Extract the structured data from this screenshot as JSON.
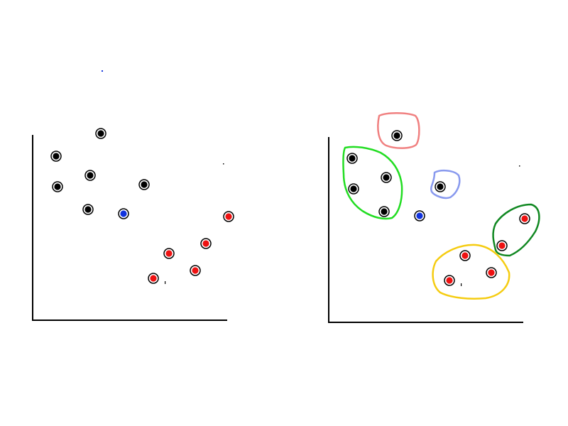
{
  "colors": {
    "background": "#ffffff",
    "axis": "#000000",
    "black_point": "#000000",
    "red_point": "#ee1111",
    "blue_point": "#1133dd",
    "cluster_salmon": "#f08080",
    "cluster_lime": "#22dd22",
    "cluster_lavender": "#8899ee",
    "cluster_darkgreen": "#118822",
    "cluster_yellow": "#f5cc11"
  },
  "panels": [
    {
      "id": "left",
      "points": [
        {
          "cls": "black"
        },
        {
          "cls": "black"
        },
        {
          "cls": "black"
        },
        {
          "cls": "black"
        },
        {
          "cls": "black"
        },
        {
          "cls": "black"
        },
        {
          "cls": "blue"
        },
        {
          "cls": "red"
        },
        {
          "cls": "red"
        },
        {
          "cls": "red"
        },
        {
          "cls": "red"
        },
        {
          "cls": "red"
        }
      ],
      "clusters": []
    },
    {
      "id": "right",
      "points": [
        {
          "cls": "black"
        },
        {
          "cls": "black"
        },
        {
          "cls": "black"
        },
        {
          "cls": "black"
        },
        {
          "cls": "black"
        },
        {
          "cls": "black"
        },
        {
          "cls": "blue"
        },
        {
          "cls": "red"
        },
        {
          "cls": "red"
        },
        {
          "cls": "red"
        },
        {
          "cls": "red"
        },
        {
          "cls": "red"
        }
      ],
      "clusters": [
        {
          "color_key": "cluster_salmon"
        },
        {
          "color_key": "cluster_lime"
        },
        {
          "color_key": "cluster_lavender"
        },
        {
          "color_key": "cluster_darkgreen"
        },
        {
          "color_key": "cluster_yellow"
        }
      ]
    }
  ]
}
